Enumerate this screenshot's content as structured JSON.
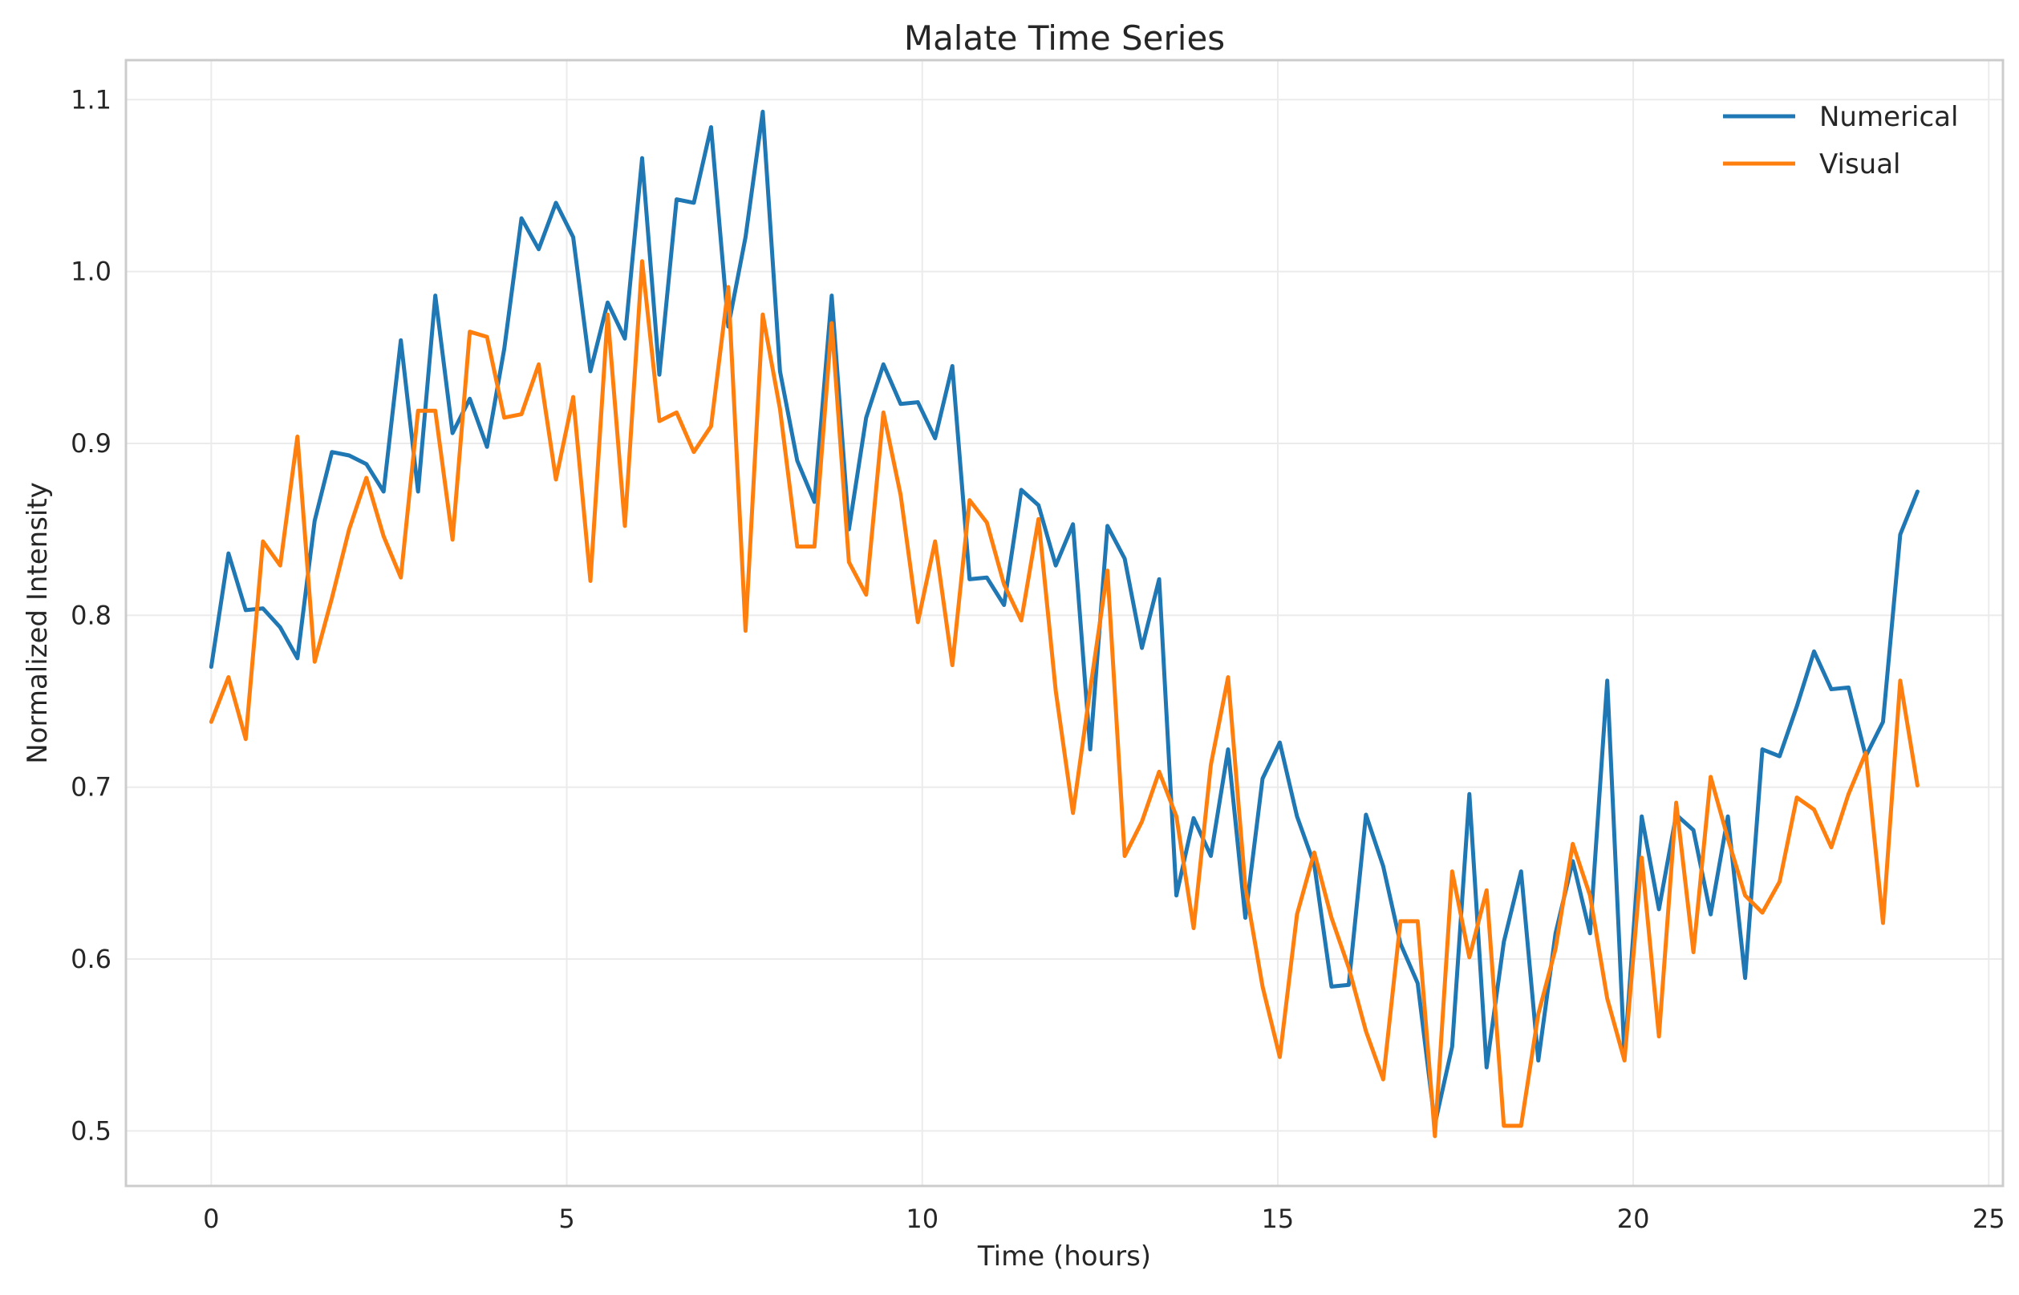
{
  "chart_data": {
    "type": "line",
    "title": "Malate Time Series",
    "xlabel": "Time (hours)",
    "ylabel": "Normalized Intensity",
    "xlim": [
      -1.2,
      25.2
    ],
    "ylim": [
      0.468,
      1.123
    ],
    "xticks": [
      0,
      5,
      10,
      15,
      20,
      25
    ],
    "yticks": [
      0.5,
      0.6,
      0.7,
      0.8,
      0.9,
      1.0,
      1.1
    ],
    "xtick_labels": [
      "0",
      "5",
      "10",
      "15",
      "20",
      "25"
    ],
    "ytick_labels": [
      "0.5",
      "0.6",
      "0.7",
      "0.8",
      "0.9",
      "1.0",
      "1.1"
    ],
    "grid": true,
    "legend_position": "top-right",
    "x_start": 0,
    "x_step": 0.2424,
    "series": [
      {
        "name": "Numerical",
        "color": "#1f77b4",
        "values": [
          0.77,
          0.836,
          0.803,
          0.804,
          0.793,
          0.775,
          0.855,
          0.895,
          0.893,
          0.888,
          0.872,
          0.96,
          0.872,
          0.986,
          0.906,
          0.926,
          0.898,
          0.955,
          1.031,
          1.013,
          1.04,
          1.02,
          0.942,
          0.982,
          0.961,
          1.066,
          0.94,
          1.042,
          1.04,
          1.084,
          0.968,
          1.02,
          1.093,
          0.942,
          0.89,
          0.866,
          0.986,
          0.85,
          0.915,
          0.946,
          0.923,
          0.924,
          0.903,
          0.945,
          0.821,
          0.822,
          0.806,
          0.873,
          0.864,
          0.829,
          0.853,
          0.722,
          0.852,
          0.833,
          0.781,
          0.821,
          0.637,
          0.682,
          0.66,
          0.722,
          0.624,
          0.705,
          0.726,
          0.683,
          0.655,
          0.584,
          0.585,
          0.684,
          0.654,
          0.609,
          0.586,
          0.504,
          0.549,
          0.696,
          0.537,
          0.61,
          0.651,
          0.541,
          0.615,
          0.657,
          0.615,
          0.762,
          0.543,
          0.683,
          0.629,
          0.684,
          0.675,
          0.626,
          0.683,
          0.589,
          0.722,
          0.718,
          0.747,
          0.779,
          0.757,
          0.758,
          0.718,
          0.738,
          0.847,
          0.872
        ]
      },
      {
        "name": "Visual",
        "color": "#ff7f0e",
        "values": [
          0.738,
          0.764,
          0.728,
          0.843,
          0.829,
          0.904,
          0.773,
          0.81,
          0.85,
          0.88,
          0.846,
          0.822,
          0.919,
          0.919,
          0.844,
          0.965,
          0.962,
          0.915,
          0.917,
          0.946,
          0.879,
          0.927,
          0.82,
          0.975,
          0.852,
          1.006,
          0.913,
          0.918,
          0.895,
          0.91,
          0.991,
          0.791,
          0.975,
          0.92,
          0.84,
          0.84,
          0.97,
          0.831,
          0.812,
          0.918,
          0.87,
          0.796,
          0.843,
          0.771,
          0.867,
          0.854,
          0.818,
          0.797,
          0.856,
          0.756,
          0.685,
          0.757,
          0.826,
          0.66,
          0.68,
          0.709,
          0.683,
          0.618,
          0.713,
          0.764,
          0.642,
          0.584,
          0.543,
          0.626,
          0.662,
          0.624,
          0.595,
          0.558,
          0.53,
          0.622,
          0.622,
          0.497,
          0.651,
          0.601,
          0.64,
          0.503,
          0.503,
          0.568,
          0.606,
          0.667,
          0.637,
          0.577,
          0.541,
          0.659,
          0.555,
          0.691,
          0.604,
          0.706,
          0.67,
          0.637,
          0.627,
          0.645,
          0.694,
          0.687,
          0.665,
          0.696,
          0.72,
          0.621,
          0.762,
          0.701
        ]
      }
    ]
  }
}
